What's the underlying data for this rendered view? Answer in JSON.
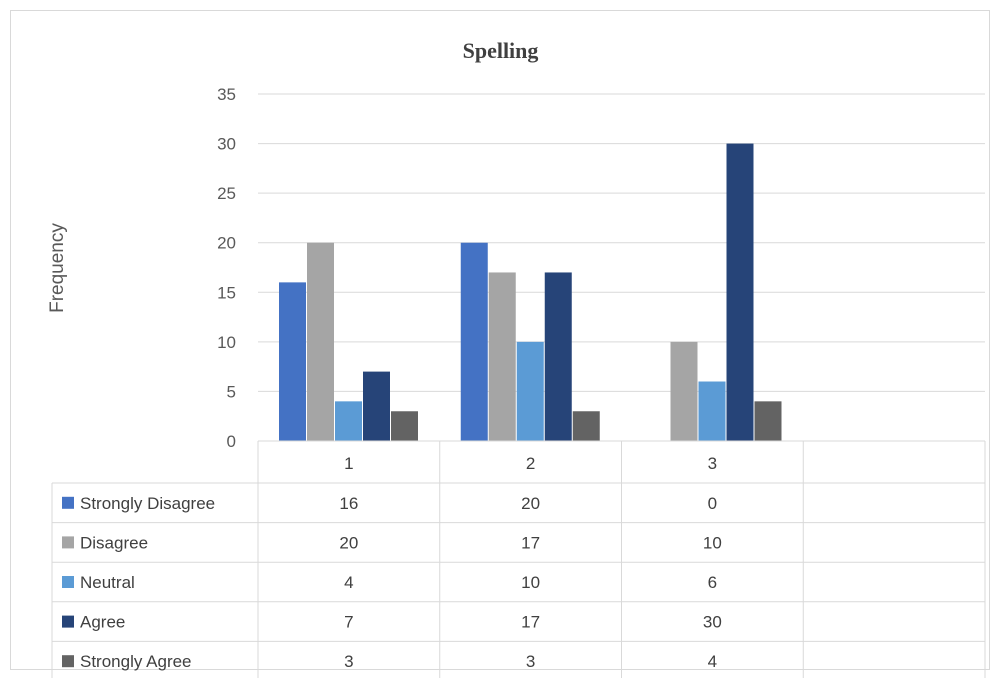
{
  "chart_data": {
    "type": "bar",
    "title": "Spelling",
    "ylabel": "Frequency",
    "xlabel": "",
    "ylim": [
      0,
      35
    ],
    "y_ticks": [
      0,
      5,
      10,
      15,
      20,
      25,
      30,
      35
    ],
    "categories": [
      "1",
      "2",
      "3"
    ],
    "grid": true,
    "legend": "data-table",
    "series": [
      {
        "name": "Strongly Disagree",
        "color": "#4472C4",
        "values": [
          16,
          20,
          0
        ]
      },
      {
        "name": "Disagree",
        "color": "#A5A5A5",
        "values": [
          20,
          17,
          10
        ]
      },
      {
        "name": "Neutral",
        "color": "#5B9BD5",
        "values": [
          4,
          10,
          6
        ]
      },
      {
        "name": "Agree",
        "color": "#264478",
        "values": [
          7,
          17,
          30
        ]
      },
      {
        "name": "Strongly Agree",
        "color": "#636363",
        "values": [
          3,
          3,
          4
        ]
      }
    ]
  }
}
